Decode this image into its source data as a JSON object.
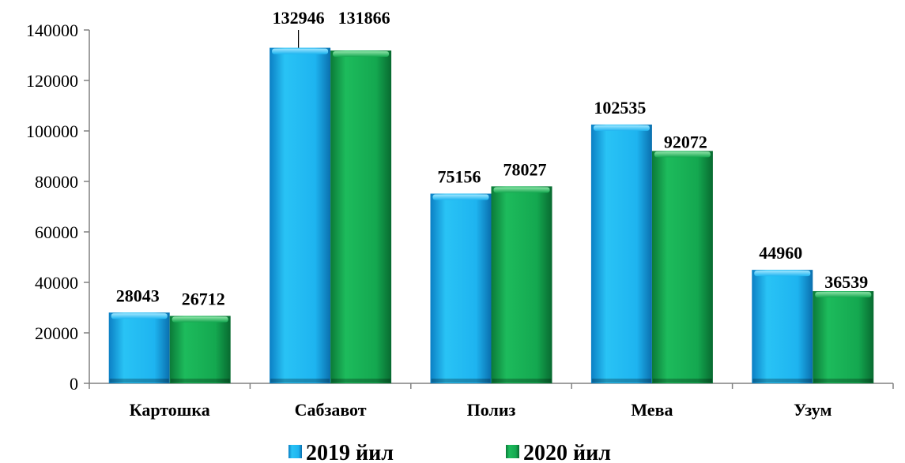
{
  "chart_data": {
    "type": "bar",
    "categories": [
      "Картошка",
      "Сабзавот",
      "Полиз",
      "Мева",
      "Узум"
    ],
    "series": [
      {
        "name": "2019 йил",
        "values": [
          28043,
          132946,
          75156,
          102535,
          44960
        ],
        "color": "#1EB4F0"
      },
      {
        "name": "2020 йил",
        "values": [
          26712,
          131866,
          78027,
          92072,
          36539
        ],
        "color": "#14A850"
      }
    ],
    "yticks": [
      "0",
      "20000",
      "40000",
      "60000",
      "80000",
      "100000",
      "120000",
      "140000"
    ],
    "ylim": [
      0,
      140000
    ],
    "grid": false,
    "legend_position": "bottom"
  }
}
